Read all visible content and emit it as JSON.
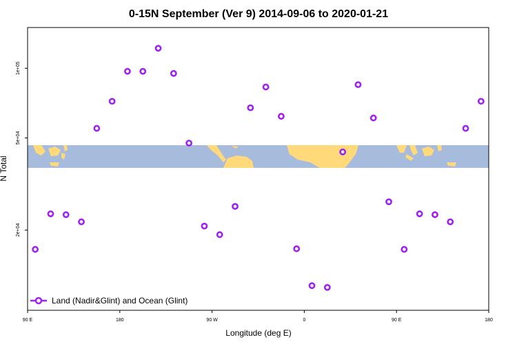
{
  "chart_data": {
    "type": "scatter",
    "title": "0-15N September (Ver 9)   2014-09-06 to 2020-01-21",
    "xlabel": "Longitude (deg E)",
    "ylabel": "N Total",
    "y_scale": "log",
    "xlim": [
      90,
      360
    ],
    "ylim": [
      9000,
      150000
    ],
    "x_ticks": [
      {
        "value": 90,
        "label": "90 E"
      },
      {
        "value": 144,
        "label": "180"
      },
      {
        "value": 198,
        "label": "90 W"
      },
      {
        "value": 252,
        "label": "0"
      },
      {
        "value": 306,
        "label": "90 E"
      },
      {
        "value": 360,
        "label": "180"
      }
    ],
    "y_ticks": [
      {
        "value": 20000,
        "label": "2e+04"
      },
      {
        "value": 50000,
        "label": "5e+04"
      },
      {
        "value": 100000,
        "label": "1e+05"
      }
    ],
    "grid": false,
    "legend_position": "bottom-left",
    "colors": {
      "marker": "#a020f0",
      "land": "#ffd97a",
      "ocean": "#a7bcdc"
    },
    "series": [
      {
        "name": "Land (Nadir&Glint) and Ocean (Glint)",
        "x": [
          94.5,
          103.5,
          112.5,
          121.5,
          130.5,
          139.5,
          148.5,
          157.5,
          166.5,
          175.5,
          184.5,
          193.5,
          202.5,
          211.5,
          220.5,
          229.5,
          238.5,
          247.5,
          256.5,
          265.5,
          274.5,
          283.5,
          292.5,
          301.5,
          310.5,
          319.5,
          328.5,
          337.5,
          346.5,
          355.5
        ],
        "y": [
          16500,
          23500,
          23300,
          21700,
          55000,
          72000,
          97000,
          97000,
          122000,
          95000,
          47500,
          20800,
          19100,
          25300,
          67500,
          83000,
          62000,
          16600,
          11500,
          11300,
          43500,
          85000,
          61000,
          26500,
          16500,
          23500,
          23300,
          21700,
          55000,
          72000
        ]
      }
    ]
  }
}
